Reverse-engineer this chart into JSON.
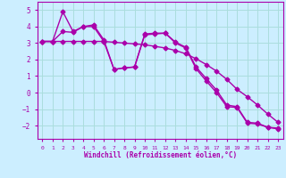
{
  "xlabel": "Windchill (Refroidissement éolien,°C)",
  "ylabel": "",
  "xlim": [
    -0.5,
    23.5
  ],
  "ylim": [
    -2.8,
    5.5
  ],
  "yticks": [
    -2,
    -1,
    0,
    1,
    2,
    3,
    4,
    5
  ],
  "xticks": [
    0,
    1,
    2,
    3,
    4,
    5,
    6,
    7,
    8,
    9,
    10,
    11,
    12,
    13,
    14,
    15,
    16,
    17,
    18,
    19,
    20,
    21,
    22,
    23
  ],
  "background_color": "#cceeff",
  "grid_color": "#aadddd",
  "line_color": "#aa00aa",
  "line_width": 1.0,
  "marker": "D",
  "marker_size": 2.5,
  "curves": [
    {
      "x": [
        0,
        1,
        2,
        3,
        4,
        5,
        6,
        7,
        8,
        9,
        10,
        11,
        12,
        13,
        14,
        15,
        16,
        17,
        18,
        19,
        20,
        21,
        22,
        23
      ],
      "y": [
        3.1,
        3.1,
        4.9,
        3.7,
        4.0,
        4.1,
        3.2,
        1.4,
        1.5,
        1.55,
        3.55,
        3.6,
        3.6,
        3.05,
        2.75,
        1.55,
        0.85,
        0.15,
        -0.75,
        -0.85,
        -1.8,
        -1.85,
        -2.1,
        -2.15
      ]
    },
    {
      "x": [
        0,
        1,
        2,
        3,
        4,
        5,
        6,
        7,
        8,
        9,
        10,
        11,
        12,
        13,
        14,
        15,
        16,
        17,
        18,
        19,
        20,
        21,
        22,
        23
      ],
      "y": [
        3.1,
        3.1,
        3.7,
        3.65,
        4.0,
        4.0,
        3.1,
        1.4,
        1.5,
        1.55,
        3.5,
        3.55,
        3.6,
        3.0,
        2.7,
        1.45,
        0.7,
        0.0,
        -0.85,
        -0.9,
        -1.85,
        -1.9,
        -2.1,
        -2.2
      ]
    },
    {
      "x": [
        0,
        1,
        2,
        3,
        4,
        5,
        6,
        7,
        8,
        9,
        10,
        11,
        12,
        13,
        14,
        15,
        16,
        17,
        18,
        19,
        20,
        21,
        22,
        23
      ],
      "y": [
        3.1,
        3.1,
        3.1,
        3.1,
        3.1,
        3.1,
        3.1,
        3.05,
        3.0,
        2.95,
        2.9,
        2.8,
        2.7,
        2.55,
        2.35,
        2.05,
        1.7,
        1.3,
        0.8,
        0.2,
        -0.25,
        -0.75,
        -1.3,
        -1.8
      ]
    }
  ]
}
